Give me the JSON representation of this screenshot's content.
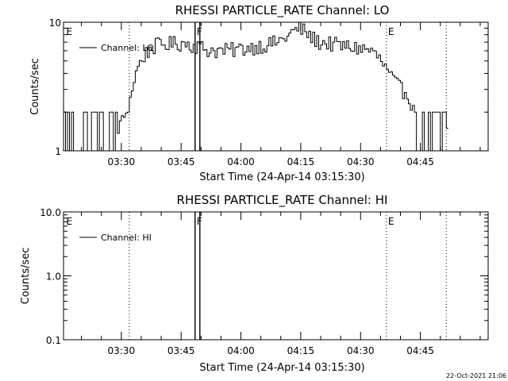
{
  "chart_data": [
    {
      "type": "line",
      "title": "RHESSI PARTICLE_RATE Channel: LO",
      "xlabel": "Start Time (24-Apr-14 03:15:30)",
      "ylabel": "Counts/sec",
      "y_scale": "log",
      "ylim": [
        1,
        10
      ],
      "y_ticks": [
        "1",
        "10"
      ],
      "x_range_minutes": [
        0,
        106.5
      ],
      "x_ticks": [
        {
          "label": "03:30",
          "minute": 14.5
        },
        {
          "label": "03:45",
          "minute": 29.5
        },
        {
          "label": "04:00",
          "minute": 44.5
        },
        {
          "label": "04:15",
          "minute": 59.5
        },
        {
          "label": "04:30",
          "minute": 74.5
        },
        {
          "label": "04:45",
          "minute": 89.5
        }
      ],
      "legend": {
        "label": "Channel: LO",
        "placement": "top-left"
      },
      "grid": false,
      "vlines": [
        {
          "minute": 16.5,
          "style": "dotted"
        },
        {
          "minute": 33.0,
          "style": "solid"
        },
        {
          "minute": 34.2,
          "style": "solid"
        },
        {
          "minute": 81.0,
          "style": "dotted"
        },
        {
          "minute": 96.0,
          "style": "dotted"
        }
      ],
      "annotations": [
        {
          "text": "E",
          "minute": 0.5
        },
        {
          "text": "F",
          "minute": 33.2
        },
        {
          "text": "E",
          "minute": 81.2
        }
      ],
      "series": [
        {
          "anchors_minute": [
            0,
            13.5,
            14.2,
            15.5,
            16.5,
            17.5,
            18.5,
            20,
            21.5,
            23,
            26,
            30,
            33,
            36,
            40,
            44,
            48,
            52,
            55,
            57,
            59,
            60.5,
            62,
            64,
            67,
            70,
            74,
            77,
            79,
            80.5,
            82,
            84,
            86,
            87.5,
            88,
            106.5
          ],
          "anchors_counts": [
            1.5,
            1.5,
            1.6,
            2.0,
            2.5,
            3.6,
            4.5,
            5.5,
            6.2,
            6.6,
            6.8,
            6.9,
            6.6,
            6.1,
            6.0,
            6.2,
            6.5,
            6.8,
            7.4,
            8.3,
            9.0,
            8.4,
            7.6,
            7.0,
            6.8,
            6.5,
            6.3,
            6.0,
            5.2,
            4.4,
            3.7,
            3.1,
            2.8,
            2.2,
            1.5,
            1.5
          ],
          "noise_bands": [
            {
              "from_minute": 0,
              "to_minute": 13.5,
              "kind": "toggle",
              "low": 1,
              "high": 2
            },
            {
              "from_minute": 88,
              "to_minute": 96,
              "kind": "toggle",
              "low": 1,
              "high": 2
            },
            {
              "from_minute": 13.5,
              "to_minute": 88,
              "kind": "jitter",
              "amplitude": 0.14
            }
          ],
          "bin_minutes": 0.5
        }
      ]
    },
    {
      "type": "line",
      "title": "RHESSI PARTICLE_RATE Channel: HI",
      "xlabel": "Start Time (24-Apr-14 03:15:30)",
      "ylabel": "Counts/sec",
      "y_scale": "log",
      "ylim": [
        0.1,
        10
      ],
      "y_ticks": [
        "0.1",
        "1.0",
        "10.0"
      ],
      "x_range_minutes": [
        0,
        106.5
      ],
      "x_ticks": [
        {
          "label": "03:30",
          "minute": 14.5
        },
        {
          "label": "03:45",
          "minute": 29.5
        },
        {
          "label": "04:00",
          "minute": 44.5
        },
        {
          "label": "04:15",
          "minute": 59.5
        },
        {
          "label": "04:30",
          "minute": 74.5
        },
        {
          "label": "04:45",
          "minute": 89.5
        }
      ],
      "legend": {
        "label": "Channel: HI",
        "placement": "top-left"
      },
      "grid": false,
      "vlines": [
        {
          "minute": 16.5,
          "style": "dotted"
        },
        {
          "minute": 33.0,
          "style": "solid"
        },
        {
          "minute": 34.2,
          "style": "solid"
        },
        {
          "minute": 81.0,
          "style": "dotted"
        },
        {
          "minute": 96.0,
          "style": "dotted"
        }
      ],
      "annotations": [
        {
          "text": "E",
          "minute": 0.5
        },
        {
          "text": "F",
          "minute": 33.2
        },
        {
          "text": "E",
          "minute": 81.2
        }
      ],
      "series": []
    }
  ],
  "footer": {
    "timestamp": "22-Oct-2021 21:06"
  }
}
